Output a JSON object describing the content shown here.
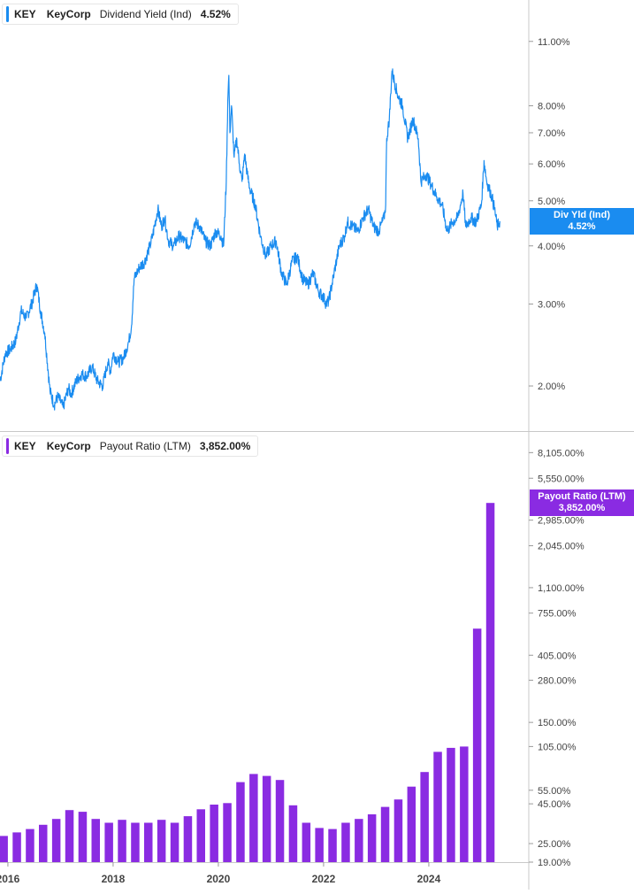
{
  "colors": {
    "yield": "#1a8cf0",
    "payout": "#8a2be2",
    "grid": "#d8d8d8",
    "axis_text": "#444444"
  },
  "legend_top": {
    "ticker": "KEY",
    "name": "KeyCorp",
    "metric": "Dividend Yield (Ind)",
    "value": "4.52%"
  },
  "legend_bottom": {
    "ticker": "KEY",
    "name": "KeyCorp",
    "metric": "Payout Ratio (LTM)",
    "value": "3,852.00%"
  },
  "flag_top": {
    "label": "Div Yld (Ind)",
    "value": "4.52%"
  },
  "flag_bottom": {
    "label": "Payout Ratio (LTM)",
    "value": "3,852.00%"
  },
  "chart_data": [
    {
      "type": "line",
      "scale": "log",
      "ylim": [
        1.6,
        13.5
      ],
      "xlim": [
        2015.85,
        2025.9
      ],
      "yticks": [
        2,
        3,
        4,
        5,
        6,
        7,
        8,
        11
      ],
      "ytick_labels": [
        "2.00%",
        "3.00%",
        "4.00%",
        "5.00%",
        "6.00%",
        "7.00%",
        "8.00%",
        "11.00%"
      ],
      "series": [
        {
          "name": "Dividend Yield (Ind)",
          "x": [
            2015.85,
            2015.95,
            2016.05,
            2016.15,
            2016.25,
            2016.35,
            2016.45,
            2016.55,
            2016.62,
            2016.7,
            2016.8,
            2016.88,
            2016.95,
            2017.05,
            2017.15,
            2017.2,
            2017.3,
            2017.4,
            2017.5,
            2017.6,
            2017.7,
            2017.8,
            2017.9,
            2017.95,
            2018.0,
            2018.1,
            2018.2,
            2018.3,
            2018.35,
            2018.4,
            2018.45,
            2018.5,
            2018.6,
            2018.7,
            2018.75,
            2018.85,
            2018.92,
            2018.98,
            2019.05,
            2019.15,
            2019.25,
            2019.35,
            2019.45,
            2019.55,
            2019.65,
            2019.75,
            2019.85,
            2019.95,
            2020.05,
            2020.1,
            2020.15,
            2020.18,
            2020.2,
            2020.22,
            2020.25,
            2020.3,
            2020.35,
            2020.4,
            2020.45,
            2020.5,
            2020.55,
            2020.6,
            2020.7,
            2020.8,
            2020.9,
            2021.0,
            2021.1,
            2021.2,
            2021.3,
            2021.4,
            2021.5,
            2021.6,
            2021.7,
            2021.8,
            2021.9,
            2022.0,
            2022.05,
            2022.1,
            2022.2,
            2022.3,
            2022.4,
            2022.45,
            2022.55,
            2022.65,
            2022.75,
            2022.85,
            2022.95,
            2023.05,
            2023.15,
            2023.18,
            2023.2,
            2023.25,
            2023.3,
            2023.4,
            2023.5,
            2023.6,
            2023.7,
            2023.8,
            2023.85,
            2023.95,
            2024.05,
            2024.15,
            2024.25,
            2024.35,
            2024.45,
            2024.55,
            2024.65,
            2024.7,
            2024.8,
            2024.9,
            2025.0,
            2025.05,
            2025.1,
            2025.2,
            2025.25,
            2025.3,
            2025.35
          ],
          "y": [
            2.05,
            2.35,
            2.4,
            2.5,
            2.9,
            2.8,
            3.0,
            3.3,
            2.9,
            2.6,
            1.95,
            1.82,
            1.9,
            1.8,
            1.98,
            1.92,
            2.05,
            2.12,
            2.1,
            2.2,
            2.05,
            2.0,
            2.25,
            2.15,
            2.35,
            2.25,
            2.3,
            2.5,
            2.7,
            3.4,
            3.5,
            3.6,
            3.7,
            4.0,
            4.2,
            4.8,
            4.4,
            4.6,
            4.1,
            4.0,
            4.2,
            4.1,
            4.0,
            4.5,
            4.4,
            4.1,
            4.0,
            4.3,
            4.2,
            4.0,
            5.5,
            8.2,
            9.3,
            7.0,
            8.0,
            6.2,
            6.8,
            6.0,
            5.5,
            6.3,
            5.7,
            5.3,
            4.9,
            4.2,
            3.8,
            4.0,
            4.1,
            3.5,
            3.3,
            3.7,
            3.8,
            3.4,
            3.3,
            3.5,
            3.2,
            3.1,
            3.0,
            3.05,
            3.5,
            4.0,
            4.2,
            4.5,
            4.4,
            4.3,
            4.6,
            4.8,
            4.4,
            4.3,
            4.6,
            4.9,
            6.8,
            7.5,
            9.5,
            8.5,
            8.0,
            6.8,
            7.5,
            6.8,
            5.5,
            5.7,
            5.4,
            5.1,
            4.9,
            4.3,
            4.5,
            4.6,
            5.2,
            4.4,
            4.6,
            4.5,
            4.9,
            6.1,
            5.5,
            5.1,
            4.8,
            4.4,
            4.52
          ]
        }
      ]
    },
    {
      "type": "bar",
      "scale": "log",
      "ylim": [
        19,
        11000
      ],
      "xlim": [
        2015.85,
        2025.9
      ],
      "yticks": [
        19,
        25,
        45,
        55,
        105,
        150,
        280,
        405,
        755,
        1100,
        2045,
        2985,
        5550,
        8105
      ],
      "ytick_labels": [
        "19.00%",
        "25.00%",
        "45.00%",
        "55.00%",
        "105.00%",
        "150.00%",
        "280.00%",
        "405.00%",
        "755.00%",
        "1,100.00%",
        "2,045.00%",
        "2,985.00%",
        "5,550.00%",
        "8,105.00%"
      ],
      "x_tick_labels": [
        "2016",
        "2018",
        "2020",
        "2022",
        "2024"
      ],
      "x_ticks": [
        2016,
        2018,
        2020,
        2022,
        2024
      ],
      "series": [
        {
          "name": "Payout Ratio (LTM)",
          "x": [
            2015.92,
            2016.17,
            2016.42,
            2016.67,
            2016.92,
            2017.17,
            2017.42,
            2017.67,
            2017.92,
            2018.17,
            2018.42,
            2018.67,
            2018.92,
            2019.17,
            2019.42,
            2019.67,
            2019.92,
            2020.17,
            2020.42,
            2020.67,
            2020.92,
            2021.17,
            2021.42,
            2021.67,
            2021.92,
            2022.17,
            2022.42,
            2022.67,
            2022.92,
            2023.17,
            2023.42,
            2023.67,
            2023.92,
            2024.17,
            2024.42,
            2024.67,
            2024.92,
            2025.17
          ],
          "values": [
            28,
            29.5,
            31,
            33,
            36,
            41,
            40,
            36,
            34,
            35.5,
            34,
            34,
            35.5,
            34,
            37.5,
            41.5,
            44.5,
            45.5,
            62,
            70,
            68,
            64,
            44,
            34,
            31.5,
            31,
            34,
            36,
            38.5,
            43,
            48,
            58,
            72,
            97,
            103,
            105,
            600,
            3852
          ]
        }
      ]
    }
  ]
}
